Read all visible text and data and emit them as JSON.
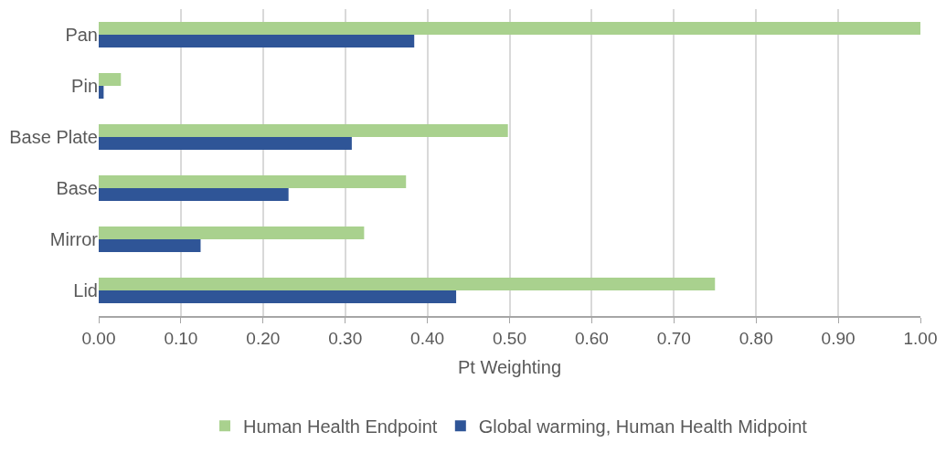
{
  "chart_data": {
    "type": "bar",
    "orientation": "horizontal",
    "xlabel": "Pt Weighting",
    "categories": [
      "Pan",
      "Pin",
      "Base Plate",
      "Base",
      "Mirror",
      "Lid"
    ],
    "series": [
      {
        "name": "Human Health Endpoint",
        "color": "#a9d18e",
        "values": [
          1.0,
          0.027,
          0.498,
          0.374,
          0.323,
          0.75
        ]
      },
      {
        "name": "Global warming, Human Health Midpoint",
        "color": "#2f5597",
        "values": [
          0.384,
          0.006,
          0.308,
          0.231,
          0.124,
          0.435
        ]
      }
    ],
    "xlim": [
      0,
      1
    ],
    "xticks": [
      {
        "value": 0,
        "label": "0.00"
      },
      {
        "value": 0.1,
        "label": "0.10"
      },
      {
        "value": 0.2,
        "label": "0.20"
      },
      {
        "value": 0.3,
        "label": "0.30"
      },
      {
        "value": 0.4,
        "label": "0.40"
      },
      {
        "value": 0.5,
        "label": "0.50"
      },
      {
        "value": 0.6,
        "label": "0.60"
      },
      {
        "value": 0.7,
        "label": "0.70"
      },
      {
        "value": 0.8,
        "label": "0.80"
      },
      {
        "value": 0.9,
        "label": "0.90"
      },
      {
        "value": 1,
        "label": "1.00"
      }
    ],
    "grid": "x",
    "legend": "bottom"
  }
}
